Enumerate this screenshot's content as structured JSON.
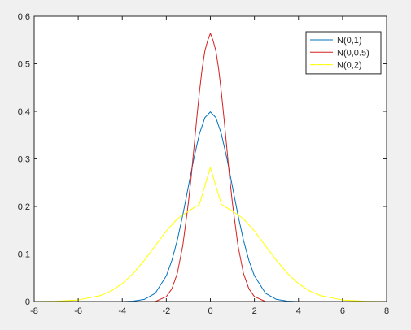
{
  "chart_data": {
    "type": "line",
    "title": "",
    "xlabel": "",
    "ylabel": "",
    "xlim": [
      -8,
      8
    ],
    "ylim": [
      0,
      0.6
    ],
    "xticks": [
      -8,
      -6,
      -4,
      -2,
      0,
      2,
      4,
      6,
      8
    ],
    "yticks": [
      0,
      0.1,
      0.2,
      0.3,
      0.4,
      0.5,
      0.6
    ],
    "grid": false,
    "legend_position": "top-right",
    "series": [
      {
        "name": "N(0,1)",
        "color": "#0072bd",
        "x": [
          -8,
          -7,
          -6,
          -5,
          -4,
          -3.5,
          -3,
          -2.5,
          -2,
          -1.75,
          -1.5,
          -1.25,
          -1,
          -0.75,
          -0.5,
          -0.25,
          0,
          0.25,
          0.5,
          0.75,
          1,
          1.25,
          1.5,
          1.75,
          2,
          2.5,
          3,
          3.5,
          4,
          5,
          6,
          7,
          8
        ],
        "y": [
          0,
          0,
          0,
          0,
          0.0001,
          0.0009,
          0.0044,
          0.0175,
          0.054,
          0.0863,
          0.1295,
          0.1826,
          0.242,
          0.3011,
          0.3521,
          0.3867,
          0.3989,
          0.3867,
          0.3521,
          0.3011,
          0.242,
          0.1826,
          0.1295,
          0.0863,
          0.054,
          0.0175,
          0.0044,
          0.0009,
          0.0001,
          0,
          0,
          0,
          0
        ]
      },
      {
        "name": "N(0,0.5)",
        "color": "#d62020",
        "x": [
          -8,
          -4,
          -2.5,
          -2,
          -1.75,
          -1.5,
          -1.25,
          -1,
          -0.875,
          -0.75,
          -0.625,
          -0.5,
          -0.375,
          -0.25,
          -0.125,
          0,
          0.125,
          0.25,
          0.375,
          0.5,
          0.625,
          0.75,
          0.875,
          1,
          1.25,
          1.5,
          1.75,
          2,
          2.5,
          4,
          8
        ],
        "y": [
          0,
          0,
          0,
          0.0103,
          0.0266,
          0.0595,
          0.1185,
          0.2075,
          0.2608,
          0.3211,
          0.3825,
          0.4394,
          0.4892,
          0.5269,
          0.5487,
          0.5642,
          0.5487,
          0.5269,
          0.4892,
          0.4394,
          0.3825,
          0.3211,
          0.2608,
          0.2075,
          0.1185,
          0.0595,
          0.0266,
          0.0103,
          0,
          0,
          0
        ]
      },
      {
        "name": "N(0,2)",
        "color": "#ffff00",
        "x": [
          -8,
          -7,
          -6,
          -5,
          -4.5,
          -4,
          -3.5,
          -3,
          -2.5,
          -2,
          -1.5,
          -1,
          -0.5,
          0,
          0.5,
          1,
          1.5,
          2,
          2.5,
          3,
          3.5,
          4,
          4.5,
          5,
          6,
          7,
          8
        ],
        "y": [
          0,
          0.0006,
          0.0033,
          0.0124,
          0.0223,
          0.0377,
          0.0592,
          0.0866,
          0.1174,
          0.1484,
          0.1739,
          0.1902,
          0.2044,
          0.2821,
          0.2044,
          0.1902,
          0.1739,
          0.1484,
          0.1174,
          0.0866,
          0.0592,
          0.0377,
          0.0223,
          0.0124,
          0.0033,
          0.0006,
          0
        ]
      }
    ]
  }
}
